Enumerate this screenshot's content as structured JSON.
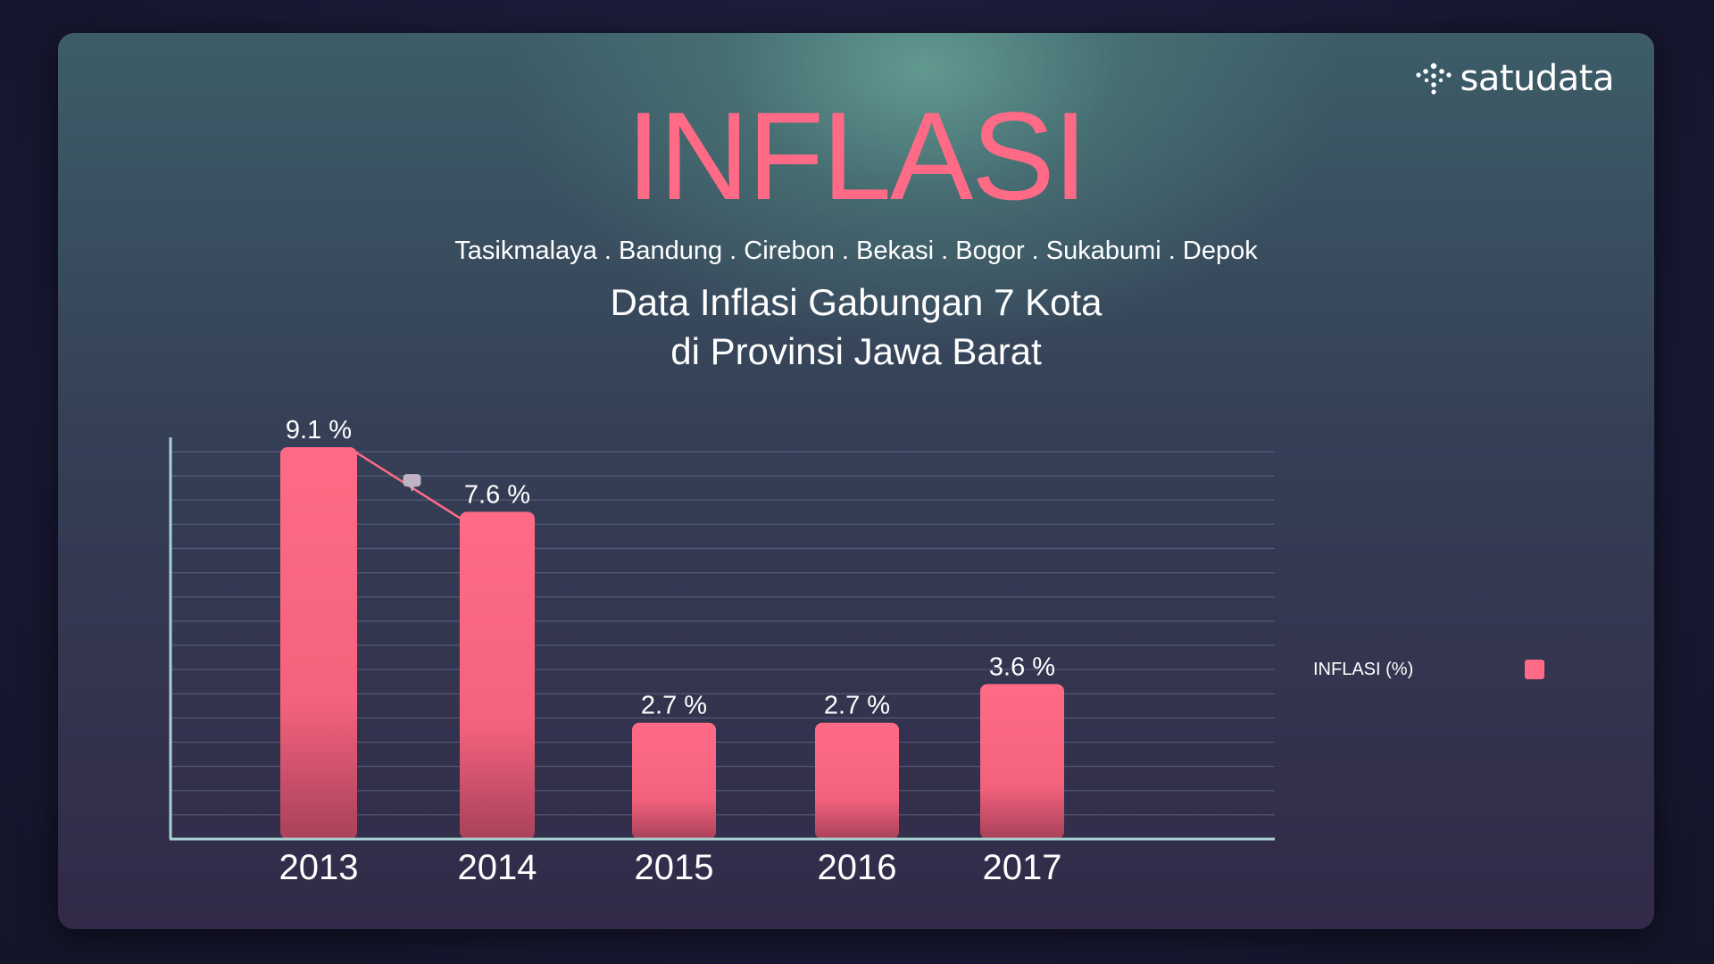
{
  "brand": {
    "name": "satudata",
    "icon": "satudata-logo-icon"
  },
  "header": {
    "title": "INFLASI",
    "cities": "Tasikmalaya . Bandung . Cirebon . Bekasi . Bogor  . Sukabumi . Depok",
    "subtitle_line1": "Data Inflasi Gabungan 7 Kota",
    "subtitle_line2": "di Provinsi Jawa Barat"
  },
  "legend": {
    "label": "INFLASI (%)",
    "color": "#ff6b86"
  },
  "chart_data": {
    "type": "bar",
    "categories": [
      "2013",
      "2014",
      "2015",
      "2016",
      "2017"
    ],
    "series": [
      {
        "name": "INFLASI (%)",
        "values": [
          9.1,
          7.6,
          2.7,
          2.7,
          3.6
        ]
      }
    ],
    "data_labels": [
      "9.1 %",
      "7.6 %",
      "2.7 %",
      "2.7 %",
      "3.6 %"
    ],
    "trend_line": {
      "from": "2013",
      "to": "2014"
    },
    "ylim": [
      0,
      9.1
    ],
    "grid": true,
    "legend_position": "right",
    "colors": {
      "bar": "#ff6b86",
      "bar_bottom": "#b9475f",
      "axis": "#a9d2d2",
      "trend": "#ff6b86"
    }
  }
}
